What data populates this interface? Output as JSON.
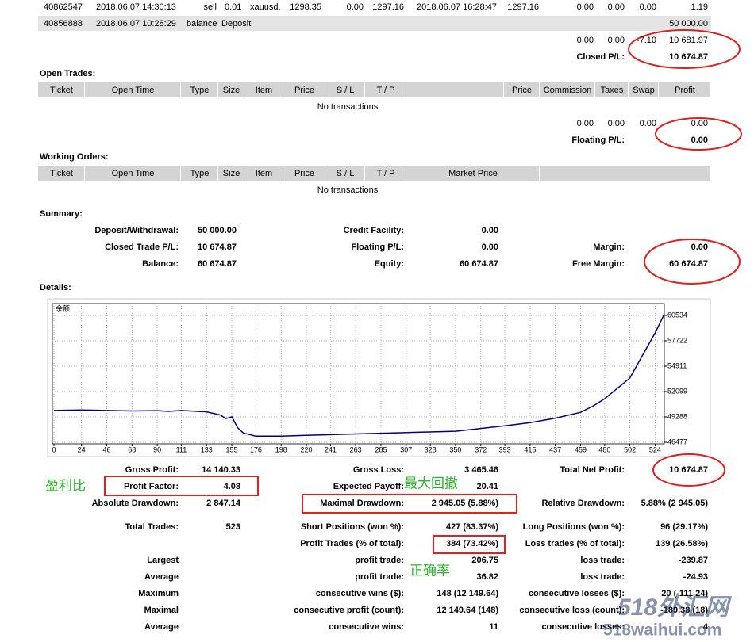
{
  "closed_trades": {
    "rows": [
      [
        "40862547",
        "2018.06.07 14:30:13",
        "sell",
        "0.01",
        "xauusd.",
        "1298.35",
        "0.00",
        "1297.16",
        "2018.06.07 16:28:47",
        "1297.16",
        "0.00",
        "0.00",
        "0.00",
        "1.19"
      ],
      [
        "40856888",
        "2018.06.07 10:28:29",
        "balance",
        "Deposit",
        "50 000.00"
      ]
    ],
    "totals": [
      "0.00",
      "0.00",
      "-7.10",
      "10 681.97"
    ],
    "pl_label": "Closed P/L:",
    "pl_value": "10 674.87"
  },
  "open_trades": {
    "title": "Open Trades:",
    "headers": [
      "Ticket",
      "Open Time",
      "Type",
      "Size",
      "Item",
      "Price",
      "S / L",
      "T / P",
      "Price",
      "Commission",
      "Taxes",
      "Swap",
      "Profit"
    ],
    "empty": "No transactions",
    "totals": [
      "0.00",
      "0.00",
      "0.00",
      "0.00"
    ],
    "pl_label": "Floating P/L:",
    "pl_value": "0.00"
  },
  "working_orders": {
    "title": "Working Orders:",
    "headers": [
      "Ticket",
      "Open Time",
      "Type",
      "Size",
      "Item",
      "Price",
      "S / L",
      "T / P",
      "Market Price"
    ],
    "empty": "No transactions"
  },
  "summary": {
    "title": "Summary:",
    "col1": [
      [
        "Deposit/Withdrawal:",
        "50 000.00"
      ],
      [
        "Closed Trade P/L:",
        "10 674.87"
      ],
      [
        "Balance:",
        "60 674.87"
      ]
    ],
    "col2": [
      [
        "Credit Facility:",
        "0.00"
      ],
      [
        "Floating P/L:",
        "0.00"
      ],
      [
        "Equity:",
        "60 674.87"
      ]
    ],
    "col3": [
      [
        "Margin:",
        "0.00"
      ],
      [
        "Free Margin:",
        "60 674.87"
      ]
    ]
  },
  "details_title": "Details:",
  "chart_data": {
    "type": "line",
    "title": "余额",
    "x": [
      0,
      24,
      46,
      68,
      90,
      100,
      111,
      133,
      145,
      150,
      155,
      160,
      165,
      176,
      198,
      220,
      263,
      307,
      350,
      365,
      393,
      415,
      437,
      459,
      470,
      480,
      502,
      524,
      532
    ],
    "series": [
      {
        "color": "#000080",
        "values": [
          50000,
          50060,
          50000,
          49950,
          49980,
          49900,
          50000,
          49850,
          49500,
          49100,
          49300,
          48100,
          47500,
          47150,
          47150,
          47250,
          47400,
          47550,
          47700,
          47900,
          48300,
          48650,
          49150,
          49800,
          50500,
          51300,
          53600,
          58600,
          60674.87
        ]
      }
    ],
    "xlim": [
      0,
      532
    ],
    "ylim": [
      46300,
      61850
    ],
    "xticks": [
      0,
      24,
      46,
      68,
      90,
      111,
      133,
      155,
      176,
      198,
      220,
      241,
      263,
      285,
      307,
      328,
      350,
      372,
      393,
      415,
      437,
      459,
      480,
      502,
      524
    ],
    "yticks": [
      46477,
      49288,
      52099,
      54911,
      57722,
      60534
    ],
    "grid": true
  },
  "stats": [
    {
      "c1": [
        "Gross Profit:",
        "14 140.33"
      ],
      "c2": [
        "Gross Loss:",
        "3 465.46"
      ],
      "c3": [
        "Total Net Profit:",
        "10 674.87"
      ]
    },
    {
      "c1": [
        "Profit Factor:",
        "4.08"
      ],
      "c2": [
        "Expected Payoff:",
        "20.41"
      ]
    },
    {
      "c1": [
        "Absolute Drawdown:",
        "2 847.14"
      ],
      "c2": [
        "Maximal Drawdown:",
        "2 945.05 (5.88%)"
      ],
      "c3": [
        "Relative Drawdown:",
        "5.88% (2 945.05)"
      ]
    },
    {
      "c1": [
        "Total Trades:",
        "523"
      ],
      "c2": [
        "Short Positions (won %):",
        "427 (83.37%)"
      ],
      "c3": [
        "Long Positions (won %):",
        "96 (29.17%)"
      ]
    },
    {
      "c2": [
        "Profit Trades (% of total):",
        "384 (73.42%)"
      ],
      "c3": [
        "Loss trades (% of total):",
        "139 (26.58%)"
      ]
    },
    {
      "c1": [
        "Largest"
      ],
      "c2": [
        "profit trade:",
        "206.75"
      ],
      "c3": [
        "loss trade:",
        "-239.87"
      ]
    },
    {
      "c1": [
        "Average"
      ],
      "c2": [
        "profit trade:",
        "36.82"
      ],
      "c3": [
        "loss trade:",
        "-24.93"
      ]
    },
    {
      "c1": [
        "Maximum"
      ],
      "c2": [
        "consecutive wins ($):",
        "148 (12 149.64)"
      ],
      "c3": [
        "consecutive losses ($):",
        "20 (-111.24)"
      ]
    },
    {
      "c1": [
        "Maximal"
      ],
      "c2": [
        "consecutive profit (count):",
        "12 149.64 (148)"
      ],
      "c3": [
        "consecutive loss (count):",
        "-189.38 (18)"
      ]
    },
    {
      "c1": [
        "Average"
      ],
      "c2": [
        "consecutive wins:",
        "11"
      ],
      "c3": [
        "consecutive losses:",
        "4"
      ]
    }
  ],
  "annotations": [
    "盈利比",
    "最大回撤",
    "正确率"
  ],
  "watermark": [
    "518外汇网",
    "518waihui.com"
  ]
}
